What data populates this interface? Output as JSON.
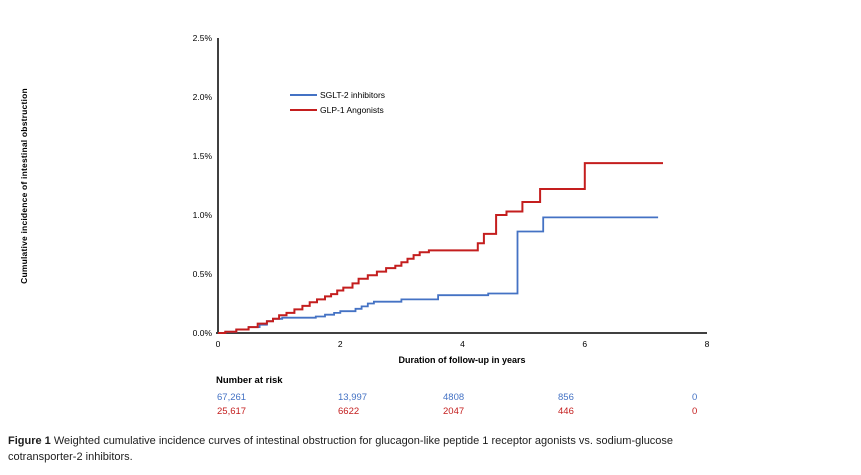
{
  "colors": {
    "sglt2": "#4472C4",
    "glp1": "#C41E1E",
    "axis": "#404040"
  },
  "chart_data": {
    "type": "line",
    "subtype": "step-cumulative-incidence",
    "title": "",
    "grid": "off",
    "legend_position": "inside-top-left",
    "x_axis": {
      "title": "Duration of follow-up in years",
      "min": 0,
      "max": 8,
      "ticks": [
        0,
        2,
        4,
        6,
        8
      ],
      "tick_labels": [
        "0",
        "2",
        "4",
        "6",
        "8"
      ]
    },
    "y_axis": {
      "title": "Cumulative incidence of intestinal obstruction",
      "min": 0,
      "max": 2.5,
      "ticks": [
        0,
        0.5,
        1.0,
        1.5,
        2.0,
        2.5
      ],
      "tick_labels": [
        "0.0%",
        "0.5%",
        "1.0%",
        "1.5%",
        "2.0%",
        "2.5%"
      ]
    },
    "series": [
      {
        "name": "SGLT-2 inhibitors",
        "color": "#4472C4",
        "unit": "percent",
        "points": [
          [
            0,
            0
          ],
          [
            0.12,
            0.01
          ],
          [
            0.3,
            0.03
          ],
          [
            0.5,
            0.05
          ],
          [
            0.68,
            0.07
          ],
          [
            0.8,
            0.1
          ],
          [
            0.9,
            0.12
          ],
          [
            1.05,
            0.13
          ],
          [
            1.6,
            0.14
          ],
          [
            1.75,
            0.155
          ],
          [
            1.9,
            0.17
          ],
          [
            2.0,
            0.185
          ],
          [
            2.25,
            0.205
          ],
          [
            2.35,
            0.225
          ],
          [
            2.45,
            0.25
          ],
          [
            2.55,
            0.265
          ],
          [
            3.0,
            0.285
          ],
          [
            3.6,
            0.32
          ],
          [
            4.42,
            0.335
          ],
          [
            4.9,
            0.86
          ],
          [
            5.32,
            0.98
          ],
          [
            7.2,
            0.98
          ]
        ]
      },
      {
        "name": "GLP-1 Angonists",
        "color": "#C41E1E",
        "unit": "percent",
        "points": [
          [
            0,
            0
          ],
          [
            0.12,
            0.01
          ],
          [
            0.3,
            0.03
          ],
          [
            0.5,
            0.05
          ],
          [
            0.65,
            0.08
          ],
          [
            0.8,
            0.1
          ],
          [
            0.9,
            0.12
          ],
          [
            1.0,
            0.15
          ],
          [
            1.12,
            0.17
          ],
          [
            1.25,
            0.2
          ],
          [
            1.38,
            0.23
          ],
          [
            1.5,
            0.26
          ],
          [
            1.62,
            0.285
          ],
          [
            1.75,
            0.31
          ],
          [
            1.85,
            0.33
          ],
          [
            1.95,
            0.36
          ],
          [
            2.05,
            0.385
          ],
          [
            2.2,
            0.42
          ],
          [
            2.3,
            0.46
          ],
          [
            2.45,
            0.49
          ],
          [
            2.6,
            0.52
          ],
          [
            2.75,
            0.55
          ],
          [
            2.9,
            0.57
          ],
          [
            3.0,
            0.6
          ],
          [
            3.1,
            0.63
          ],
          [
            3.2,
            0.66
          ],
          [
            3.3,
            0.685
          ],
          [
            3.45,
            0.7
          ],
          [
            4.25,
            0.76
          ],
          [
            4.35,
            0.84
          ],
          [
            4.55,
            1.0
          ],
          [
            4.72,
            1.03
          ],
          [
            4.98,
            1.11
          ],
          [
            5.27,
            1.22
          ],
          [
            6.0,
            1.44
          ],
          [
            7.28,
            1.44
          ]
        ]
      }
    ]
  },
  "risk_table": {
    "title": "Number at risk",
    "rows": [
      {
        "series": "SGLT-2 inhibitors",
        "color": "#4472C4",
        "values": [
          "67,261",
          "13,997",
          "4808",
          "856",
          "0"
        ]
      },
      {
        "series": "GLP-1 Angonists",
        "color": "#C41E1E",
        "values": [
          "25,617",
          "6622",
          "2047",
          "446",
          "0"
        ]
      }
    ]
  },
  "caption": {
    "label": "Figure 1",
    "line1": "Weighted cumulative incidence curves of intestinal obstruction for glucagon-like peptide 1 receptor agonists vs. sodium-glucose",
    "line2": "cotransporter-2 inhibitors."
  }
}
